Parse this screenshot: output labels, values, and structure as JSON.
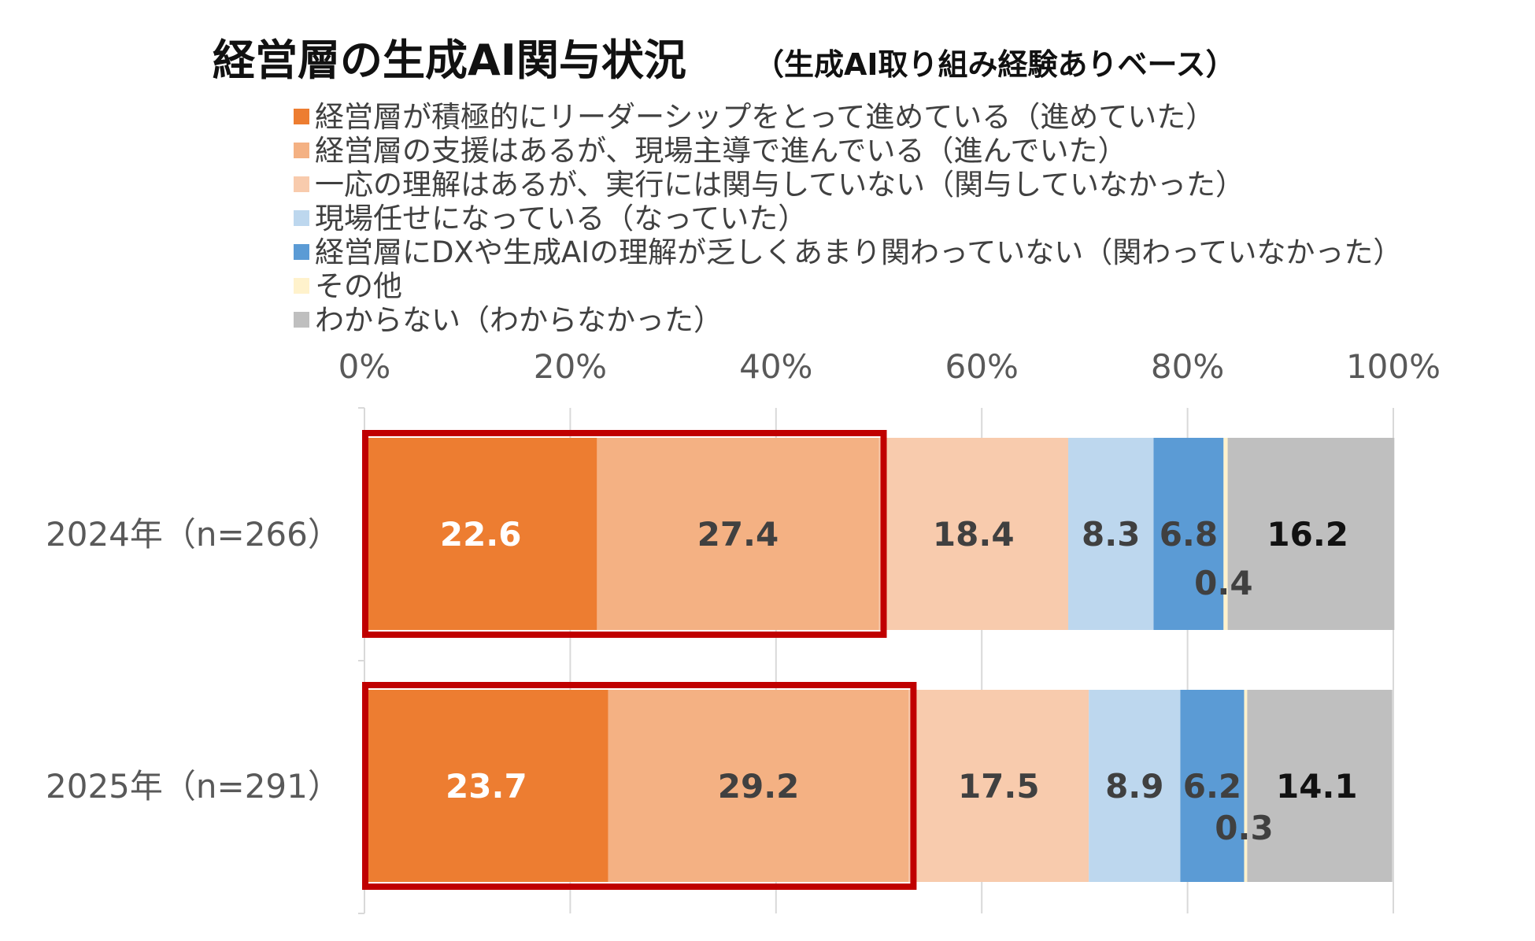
{
  "chart_data": {
    "type": "bar",
    "orientation": "horizontal",
    "stacked": true,
    "title": "経営層の生成AI関与状況",
    "subtitle": "（生成AI取り組み経験ありベース）",
    "categories": [
      "2024年（n=266）",
      "2025年（n=291）"
    ],
    "xlim": [
      0,
      100
    ],
    "x_ticks": [
      "0%",
      "20%",
      "40%",
      "60%",
      "80%",
      "100%"
    ],
    "grid": true,
    "legend_position": "top",
    "series": [
      {
        "name": "経営層が積極的にリーダーシップをとって進めている（進めていた）",
        "values": [
          22.6,
          23.7
        ],
        "labels": [
          "22.6",
          "23.7"
        ],
        "color": "#ED7D31",
        "label_color": "#ffffff"
      },
      {
        "name": "経営層の支援はあるが、現場主導で進んでいる（進んでいた）",
        "values": [
          27.4,
          29.2
        ],
        "labels": [
          "27.4",
          "29.2"
        ],
        "color": "#F4B183",
        "label_color": "#404040"
      },
      {
        "name": "一応の理解はあるが、実行には関与していない（関与していなかった）",
        "values": [
          18.4,
          17.5
        ],
        "labels": [
          "18.4",
          "17.5"
        ],
        "color": "#F8CBAD",
        "label_color": "#404040"
      },
      {
        "name": "現場任せになっている（なっていた）",
        "values": [
          8.3,
          8.9
        ],
        "labels": [
          "8.3",
          "8.9"
        ],
        "color": "#BDD7EE",
        "label_color": "#404040"
      },
      {
        "name": "経営層にDXや生成AIの理解が乏しくあまり関わっていない（関わっていなかった）",
        "values": [
          6.8,
          6.2
        ],
        "labels": [
          "6.8",
          "6.2"
        ],
        "color": "#5B9BD5",
        "label_color": "#404040"
      },
      {
        "name": "その他",
        "values": [
          0.4,
          0.3
        ],
        "labels": [
          "0.4",
          "0.3"
        ],
        "color": "#FFF2CC",
        "label_color": "#404040"
      },
      {
        "name": "わからない（わからなかった）",
        "values": [
          16.2,
          14.1
        ],
        "labels": [
          "16.2",
          "14.1"
        ],
        "color": "#BFBFBF",
        "label_color": "#111111"
      }
    ],
    "highlight": {
      "series_count": 2,
      "color": "#C00000"
    }
  }
}
